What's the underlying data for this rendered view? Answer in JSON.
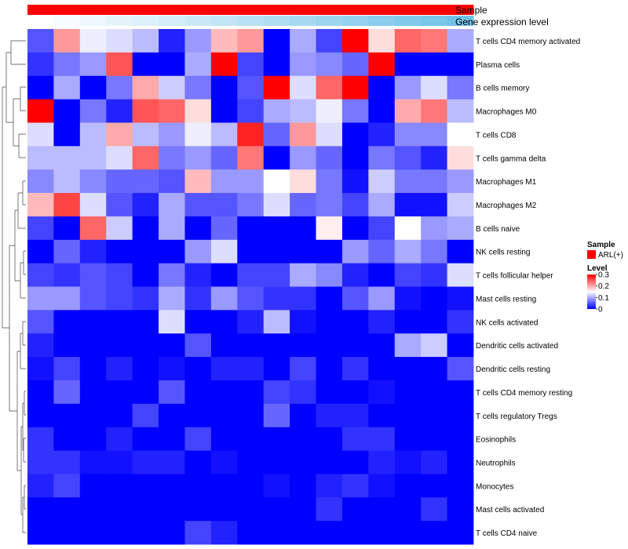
{
  "chart_data": {
    "type": "heatmap",
    "annotation_labels": [
      "Sample",
      "Gene expression level"
    ],
    "sample_legend": {
      "title": "Sample",
      "entries": [
        {
          "label": "ARL(+)",
          "color": "#ff0000"
        }
      ]
    },
    "level_legend": {
      "title": "Level",
      "ticks": [
        "0.3",
        "0.2",
        "0.1",
        "0"
      ],
      "tick_values": [
        0.3,
        0.2,
        0.1,
        0
      ]
    },
    "color_scale": {
      "min": 0,
      "mid": 0.15,
      "max": 0.3,
      "low_color": "#0000ff",
      "mid_color": "#ffffff",
      "high_color": "#ff0000"
    },
    "sample_annotation_color": "#ff0000",
    "gene_expression_colors": [
      "#ffffff",
      "#f6fbfd",
      "#eef8fc",
      "#e5f4fa",
      "#dcf1f9",
      "#d3edf8",
      "#cae9f6",
      "#c1e5f5",
      "#b8e1f4",
      "#afddf2",
      "#a6d9f1",
      "#9dd5ef",
      "#94d1ee",
      "#8bcdec",
      "#82caeb",
      "#79c6e9",
      "#70c2e8"
    ],
    "row_labels": [
      "T cells CD4 memory activated",
      "Plasma cells",
      "B cells memory",
      "Macrophages M0",
      "T cells CD8",
      "T cells gamma delta",
      "Macrophages M1",
      "Macrophages M2",
      "B cells naive",
      "NK cells resting",
      "T cells follicular helper",
      "Mast cells resting",
      "NK cells activated",
      "Dendritic cells activated",
      "Dendritic cells resting",
      "T cells CD4 memory resting",
      "T cells regulatory  Tregs",
      "Eosinophils",
      "Neutrophils",
      "Monocytes",
      "Mast cells activated",
      "T cells CD4 naive"
    ],
    "values": [
      [
        0.05,
        0.21,
        0.14,
        0.13,
        0.11,
        0.02,
        0.09,
        0.19,
        0.21,
        0.0,
        0.1,
        0.04,
        0.3,
        0.17,
        0.24,
        0.23,
        0.1
      ],
      [
        0.03,
        0.07,
        0.09,
        0.25,
        0.0,
        0.0,
        0.1,
        0.3,
        0.04,
        0.0,
        0.09,
        0.08,
        0.06,
        0.3,
        0.0,
        0.0,
        0.0
      ],
      [
        0.0,
        0.1,
        0.0,
        0.07,
        0.2,
        0.12,
        0.07,
        0.0,
        0.05,
        0.3,
        0.13,
        0.24,
        0.3,
        0.0,
        0.09,
        0.13,
        0.07
      ],
      [
        0.3,
        0.0,
        0.07,
        0.02,
        0.25,
        0.24,
        0.17,
        0.0,
        0.04,
        0.1,
        0.11,
        0.14,
        0.07,
        0.0,
        0.2,
        0.23,
        0.11
      ],
      [
        0.13,
        0.0,
        0.11,
        0.2,
        0.11,
        0.09,
        0.14,
        0.11,
        0.28,
        0.06,
        0.21,
        0.13,
        0.0,
        0.02,
        0.08,
        0.08,
        0.15
      ],
      [
        0.11,
        0.11,
        0.11,
        0.13,
        0.24,
        0.07,
        0.09,
        0.06,
        0.23,
        0.0,
        0.09,
        0.06,
        0.0,
        0.07,
        0.05,
        0.02,
        0.17
      ],
      [
        0.08,
        0.11,
        0.08,
        0.06,
        0.06,
        0.05,
        0.19,
        0.09,
        0.09,
        0.15,
        0.17,
        0.07,
        0.01,
        0.12,
        0.07,
        0.07,
        0.09
      ],
      [
        0.19,
        0.26,
        0.13,
        0.05,
        0.02,
        0.1,
        0.05,
        0.05,
        0.07,
        0.13,
        0.06,
        0.07,
        0.04,
        0.1,
        0.01,
        0.01,
        0.12
      ],
      [
        0.04,
        0.0,
        0.24,
        0.12,
        0.0,
        0.1,
        0.0,
        0.06,
        0.0,
        0.0,
        0.0,
        0.16,
        0.0,
        0.04,
        0.15,
        0.09,
        0.1
      ],
      [
        0.0,
        0.06,
        0.02,
        0.0,
        0.0,
        0.0,
        0.09,
        0.13,
        0.0,
        0.0,
        0.0,
        0.0,
        0.09,
        0.06,
        0.1,
        0.07,
        0.0
      ],
      [
        0.04,
        0.03,
        0.05,
        0.04,
        0.0,
        0.07,
        0.02,
        0.0,
        0.04,
        0.04,
        0.1,
        0.08,
        0.02,
        0.0,
        0.04,
        0.03,
        0.13
      ],
      [
        0.09,
        0.09,
        0.05,
        0.04,
        0.03,
        0.1,
        0.03,
        0.09,
        0.05,
        0.03,
        0.03,
        0.0,
        0.05,
        0.09,
        0.01,
        0.0,
        0.01
      ],
      [
        0.05,
        0.0,
        0.0,
        0.0,
        0.0,
        0.13,
        0.0,
        0.0,
        0.02,
        0.11,
        0.01,
        0.0,
        0.0,
        0.02,
        0.0,
        0.0,
        0.03
      ],
      [
        0.02,
        0.0,
        0.0,
        0.0,
        0.0,
        0.0,
        0.05,
        0.0,
        0.0,
        0.0,
        0.0,
        0.0,
        0.0,
        0.0,
        0.1,
        0.12,
        0.0
      ],
      [
        0.01,
        0.04,
        0.0,
        0.02,
        0.0,
        0.01,
        0.0,
        0.02,
        0.02,
        0.0,
        0.04,
        0.0,
        0.03,
        0.0,
        0.0,
        0.0,
        0.05
      ],
      [
        0.0,
        0.06,
        0.0,
        0.0,
        0.0,
        0.05,
        0.0,
        0.0,
        0.0,
        0.04,
        0.03,
        0.0,
        0.0,
        0.01,
        0.0,
        0.0,
        0.0
      ],
      [
        0.0,
        0.0,
        0.0,
        0.0,
        0.04,
        0.0,
        0.0,
        0.0,
        0.0,
        0.06,
        0.0,
        0.02,
        0.02,
        0.0,
        0.0,
        0.0,
        0.0
      ],
      [
        0.03,
        0.0,
        0.0,
        0.02,
        0.0,
        0.0,
        0.04,
        0.0,
        0.0,
        0.0,
        0.0,
        0.0,
        0.03,
        0.03,
        0.0,
        0.0,
        0.0
      ],
      [
        0.03,
        0.03,
        0.01,
        0.01,
        0.02,
        0.02,
        0.0,
        0.01,
        0.0,
        0.0,
        0.0,
        0.0,
        0.0,
        0.02,
        0.01,
        0.02,
        0.0
      ],
      [
        0.02,
        0.04,
        0.0,
        0.0,
        0.0,
        0.0,
        0.0,
        0.0,
        0.0,
        0.01,
        0.0,
        0.02,
        0.03,
        0.01,
        0.0,
        0.0,
        0.0
      ],
      [
        0.0,
        0.0,
        0.0,
        0.0,
        0.0,
        0.0,
        0.0,
        0.0,
        0.0,
        0.0,
        0.0,
        0.03,
        0.0,
        0.0,
        0.0,
        0.03,
        0.0
      ],
      [
        0.0,
        0.0,
        0.0,
        0.0,
        0.0,
        0.0,
        0.04,
        0.02,
        0.0,
        0.0,
        0.0,
        0.0,
        0.0,
        0.0,
        0.0,
        0.0,
        0.0
      ]
    ]
  }
}
